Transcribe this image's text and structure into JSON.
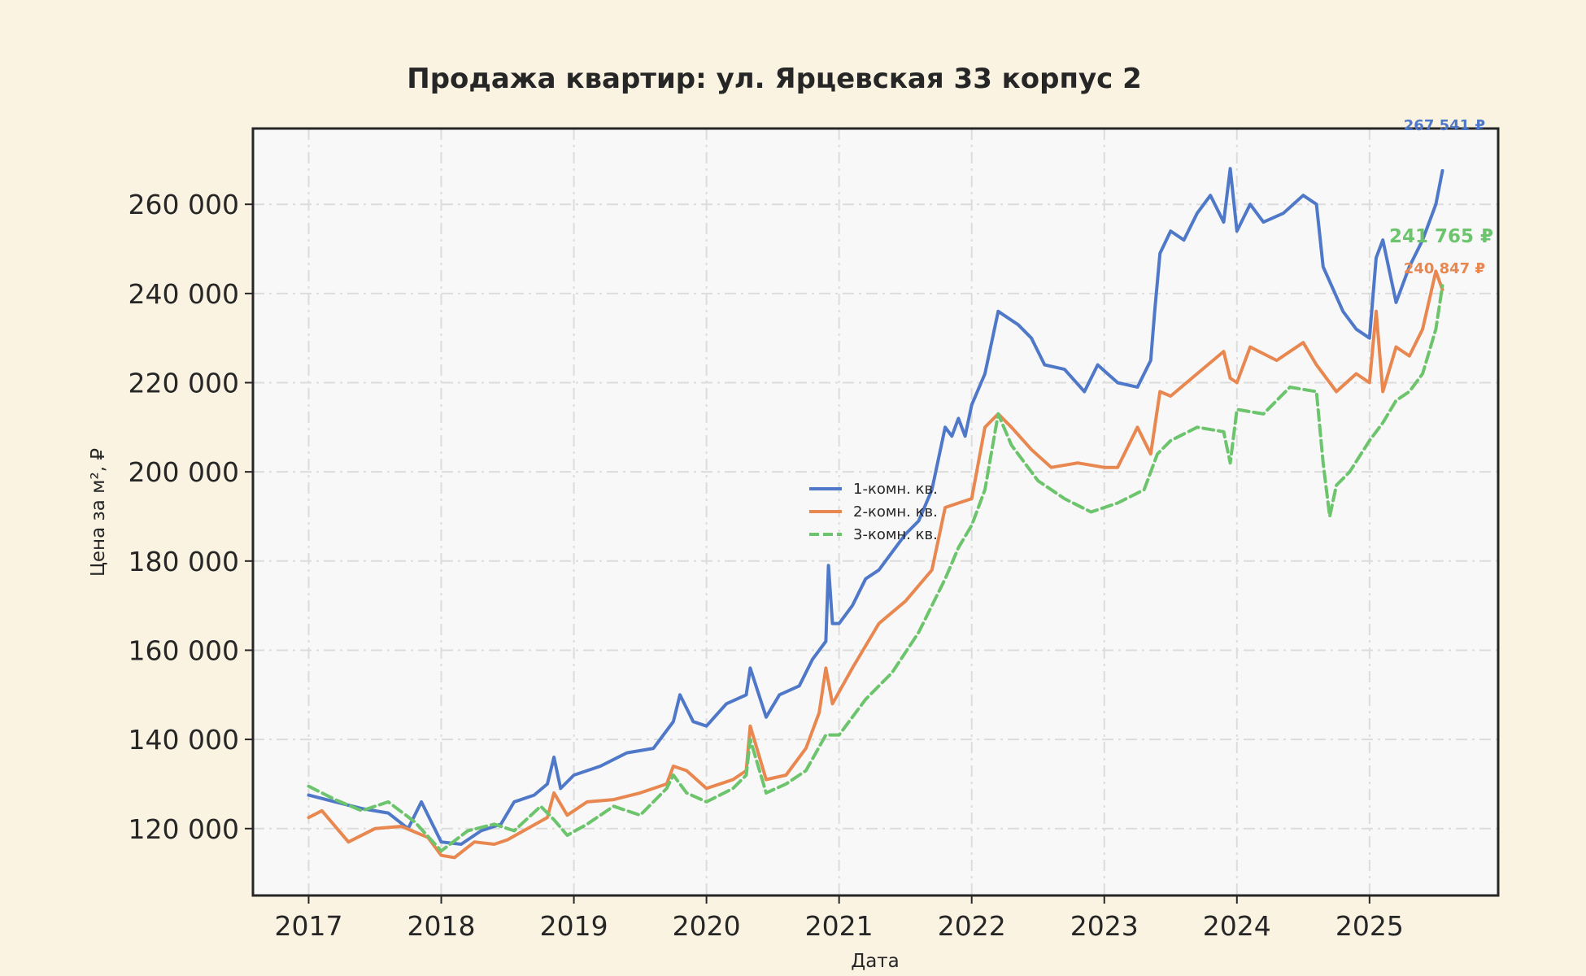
{
  "chart_data": {
    "type": "line",
    "title": "Продажа квартир: ул. Ярцевская 33 корпус 2",
    "xlabel": "Дата",
    "ylabel": "Цена за м², ₽",
    "xlim": [
      2016.58,
      2025.97
    ],
    "ylim": [
      105000,
      277000
    ],
    "x_ticks": [
      2017,
      2018,
      2019,
      2020,
      2021,
      2022,
      2023,
      2024,
      2025
    ],
    "x_tick_labels": [
      "2017",
      "2018",
      "2019",
      "2020",
      "2021",
      "2022",
      "2023",
      "2024",
      "2025"
    ],
    "y_ticks": [
      120000,
      140000,
      160000,
      180000,
      200000,
      220000,
      240000,
      260000
    ],
    "y_tick_labels": [
      "120 000",
      "140 000",
      "160 000",
      "180 000",
      "200 000",
      "220 000",
      "240 000",
      "260 000"
    ],
    "grid": true,
    "legend_position": "center",
    "colors": {
      "background": "#fbf3e1",
      "plot_background": "#f8f8f8",
      "grid": "#dcdcdc",
      "frame": "#262626"
    },
    "series": [
      {
        "name": "1-комн. кв.",
        "color": "#4f78c8",
        "dash": "solid",
        "end_label": "267 541 ₽",
        "x": [
          2017.0,
          2017.2,
          2017.4,
          2017.6,
          2017.75,
          2017.85,
          2018.0,
          2018.15,
          2018.3,
          2018.45,
          2018.55,
          2018.7,
          2018.8,
          2018.85,
          2018.9,
          2019.0,
          2019.2,
          2019.4,
          2019.6,
          2019.75,
          2019.8,
          2019.9,
          2020.0,
          2020.15,
          2020.3,
          2020.33,
          2020.45,
          2020.55,
          2020.7,
          2020.8,
          2020.9,
          2020.92,
          2020.95,
          2021.0,
          2021.1,
          2021.2,
          2021.3,
          2021.4,
          2021.5,
          2021.6,
          2021.7,
          2021.8,
          2021.85,
          2021.9,
          2021.95,
          2022.0,
          2022.1,
          2022.2,
          2022.25,
          2022.35,
          2022.45,
          2022.55,
          2022.7,
          2022.85,
          2022.95,
          2023.1,
          2023.25,
          2023.35,
          2023.38,
          2023.42,
          2023.5,
          2023.6,
          2023.7,
          2023.8,
          2023.9,
          2023.95,
          2024.0,
          2024.1,
          2024.2,
          2024.35,
          2024.5,
          2024.6,
          2024.65,
          2024.8,
          2024.9,
          2025.0,
          2025.05,
          2025.1,
          2025.2,
          2025.3,
          2025.4,
          2025.5,
          2025.55
        ],
        "values": [
          127500,
          126000,
          124500,
          123500,
          120000,
          126000,
          117000,
          116500,
          119500,
          121000,
          126000,
          127500,
          130000,
          136000,
          129000,
          132000,
          134000,
          137000,
          138000,
          144000,
          150000,
          144000,
          143000,
          148000,
          150000,
          156000,
          145000,
          150000,
          152000,
          158000,
          162000,
          179000,
          166000,
          166000,
          170000,
          176000,
          178000,
          182000,
          186000,
          189000,
          196000,
          210000,
          208000,
          212000,
          208000,
          215000,
          222000,
          236000,
          235000,
          233000,
          230000,
          224000,
          223000,
          218000,
          224000,
          220000,
          219000,
          225000,
          236000,
          249000,
          254000,
          252000,
          258000,
          262000,
          256000,
          268000,
          254000,
          260000,
          256000,
          258000,
          262000,
          260000,
          246000,
          236000,
          232000,
          230000,
          248000,
          252000,
          238000,
          246000,
          252000,
          260000,
          267541
        ]
      },
      {
        "name": "2-комн. кв.",
        "color": "#e8874f",
        "dash": "solid",
        "end_label": "240 847 ₽",
        "x": [
          2017.0,
          2017.1,
          2017.3,
          2017.5,
          2017.7,
          2017.9,
          2018.0,
          2018.1,
          2018.25,
          2018.4,
          2018.5,
          2018.65,
          2018.8,
          2018.85,
          2018.95,
          2019.1,
          2019.3,
          2019.5,
          2019.7,
          2019.75,
          2019.85,
          2020.0,
          2020.2,
          2020.3,
          2020.33,
          2020.45,
          2020.6,
          2020.75,
          2020.85,
          2020.9,
          2020.95,
          2021.1,
          2021.3,
          2021.5,
          2021.7,
          2021.8,
          2021.9,
          2022.0,
          2022.1,
          2022.2,
          2022.3,
          2022.45,
          2022.6,
          2022.8,
          2023.0,
          2023.1,
          2023.25,
          2023.35,
          2023.42,
          2023.5,
          2023.7,
          2023.9,
          2023.95,
          2024.0,
          2024.1,
          2024.3,
          2024.5,
          2024.6,
          2024.75,
          2024.9,
          2025.0,
          2025.05,
          2025.1,
          2025.2,
          2025.3,
          2025.4,
          2025.5,
          2025.55
        ],
        "values": [
          122500,
          124000,
          117000,
          120000,
          120500,
          118000,
          114000,
          113500,
          117000,
          116500,
          117500,
          120000,
          122500,
          128000,
          123000,
          126000,
          126500,
          128000,
          130000,
          134000,
          133000,
          129000,
          131000,
          133000,
          143000,
          131000,
          132000,
          138000,
          146000,
          156000,
          148000,
          156000,
          166000,
          171000,
          178000,
          192000,
          193000,
          194000,
          210000,
          213000,
          210000,
          205000,
          201000,
          202000,
          201000,
          201000,
          210000,
          204000,
          218000,
          217000,
          222000,
          227000,
          221000,
          220000,
          228000,
          225000,
          229000,
          224000,
          218000,
          222000,
          220000,
          236000,
          218000,
          228000,
          226000,
          232000,
          245000,
          240847
        ]
      },
      {
        "name": "3-комн. кв.",
        "color": "#6cc46c",
        "dash": "dashed",
        "end_label": "241 765 ₽",
        "x": [
          2017.0,
          2017.2,
          2017.4,
          2017.6,
          2017.8,
          2018.0,
          2018.2,
          2018.4,
          2018.55,
          2018.75,
          2018.85,
          2018.95,
          2019.1,
          2019.3,
          2019.5,
          2019.7,
          2019.75,
          2019.85,
          2020.0,
          2020.2,
          2020.3,
          2020.33,
          2020.45,
          2020.6,
          2020.75,
          2020.9,
          2021.0,
          2021.2,
          2021.4,
          2021.6,
          2021.8,
          2021.9,
          2022.0,
          2022.1,
          2022.2,
          2022.3,
          2022.5,
          2022.7,
          2022.9,
          2023.1,
          2023.3,
          2023.4,
          2023.5,
          2023.7,
          2023.9,
          2023.95,
          2024.0,
          2024.2,
          2024.4,
          2024.6,
          2024.65,
          2024.7,
          2024.75,
          2024.85,
          2025.0,
          2025.1,
          2025.2,
          2025.3,
          2025.4,
          2025.5,
          2025.55
        ],
        "values": [
          129500,
          126500,
          124000,
          126000,
          121500,
          115000,
          119500,
          121000,
          119500,
          125000,
          122000,
          118500,
          121000,
          125000,
          123000,
          129000,
          132000,
          128000,
          126000,
          129000,
          132000,
          140000,
          128000,
          130000,
          133000,
          141000,
          141000,
          149000,
          155000,
          164000,
          176000,
          183000,
          188000,
          196000,
          213000,
          206000,
          198000,
          194000,
          191000,
          193000,
          196000,
          204000,
          207000,
          210000,
          209000,
          202000,
          214000,
          213000,
          219000,
          218000,
          202000,
          190000,
          197000,
          200000,
          207000,
          211000,
          216000,
          218000,
          222000,
          232000,
          241765
        ]
      }
    ]
  }
}
